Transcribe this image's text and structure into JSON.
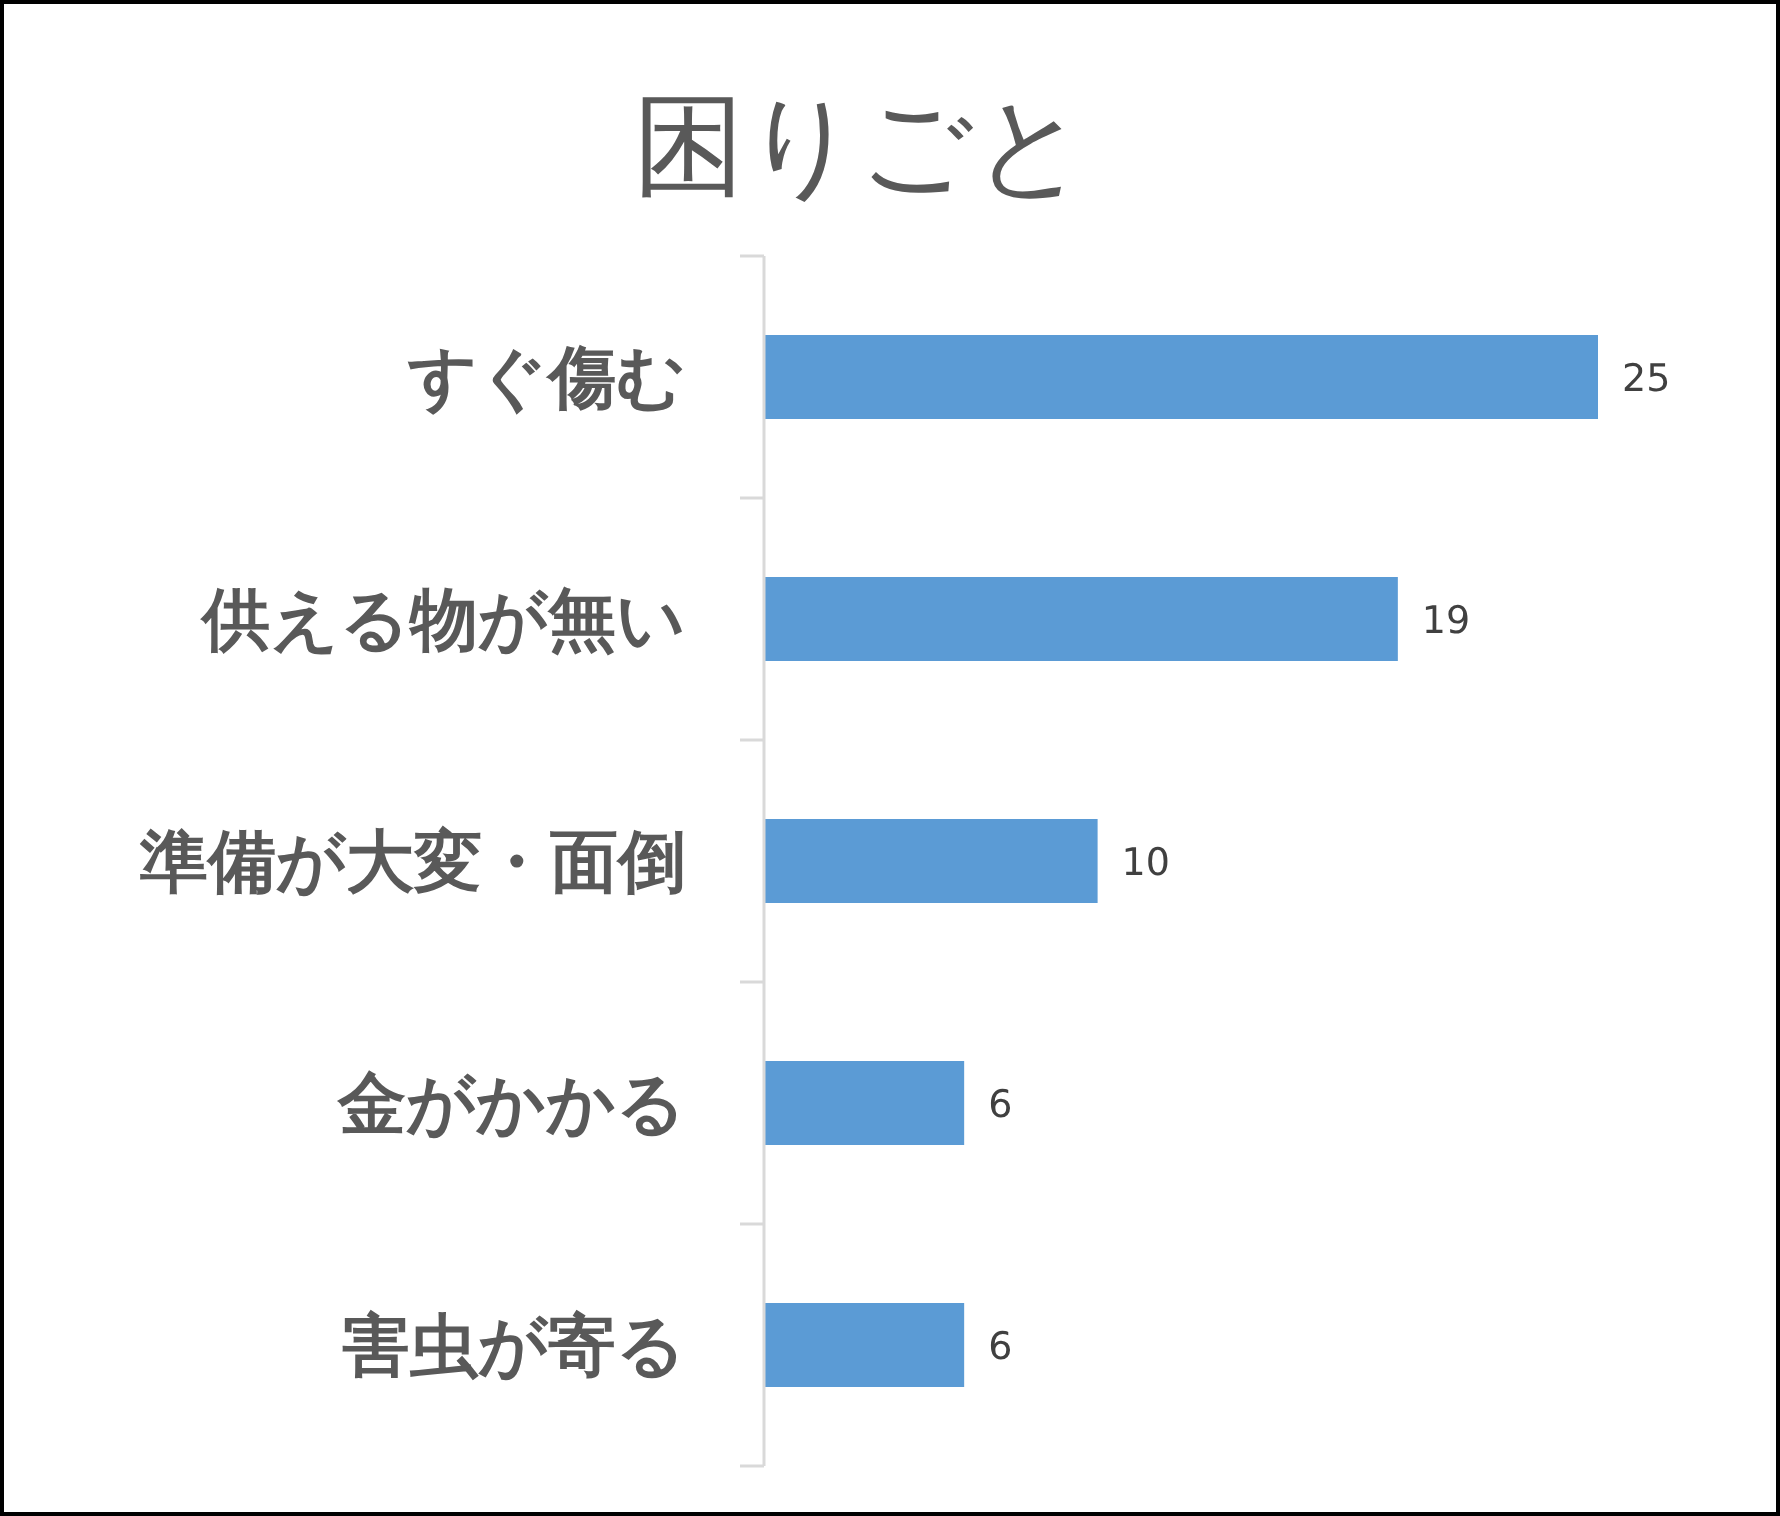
{
  "chart_data": {
    "type": "bar",
    "title": "困りごと",
    "orientation": "horizontal",
    "categories": [
      "すぐ傷む",
      "供える物が無い",
      "準備が大変・面倒",
      "金がかかる",
      "害虫が寄る"
    ],
    "values": [
      25,
      19,
      10,
      6,
      6
    ],
    "color": "#5b9bd5",
    "data_labels": true
  }
}
